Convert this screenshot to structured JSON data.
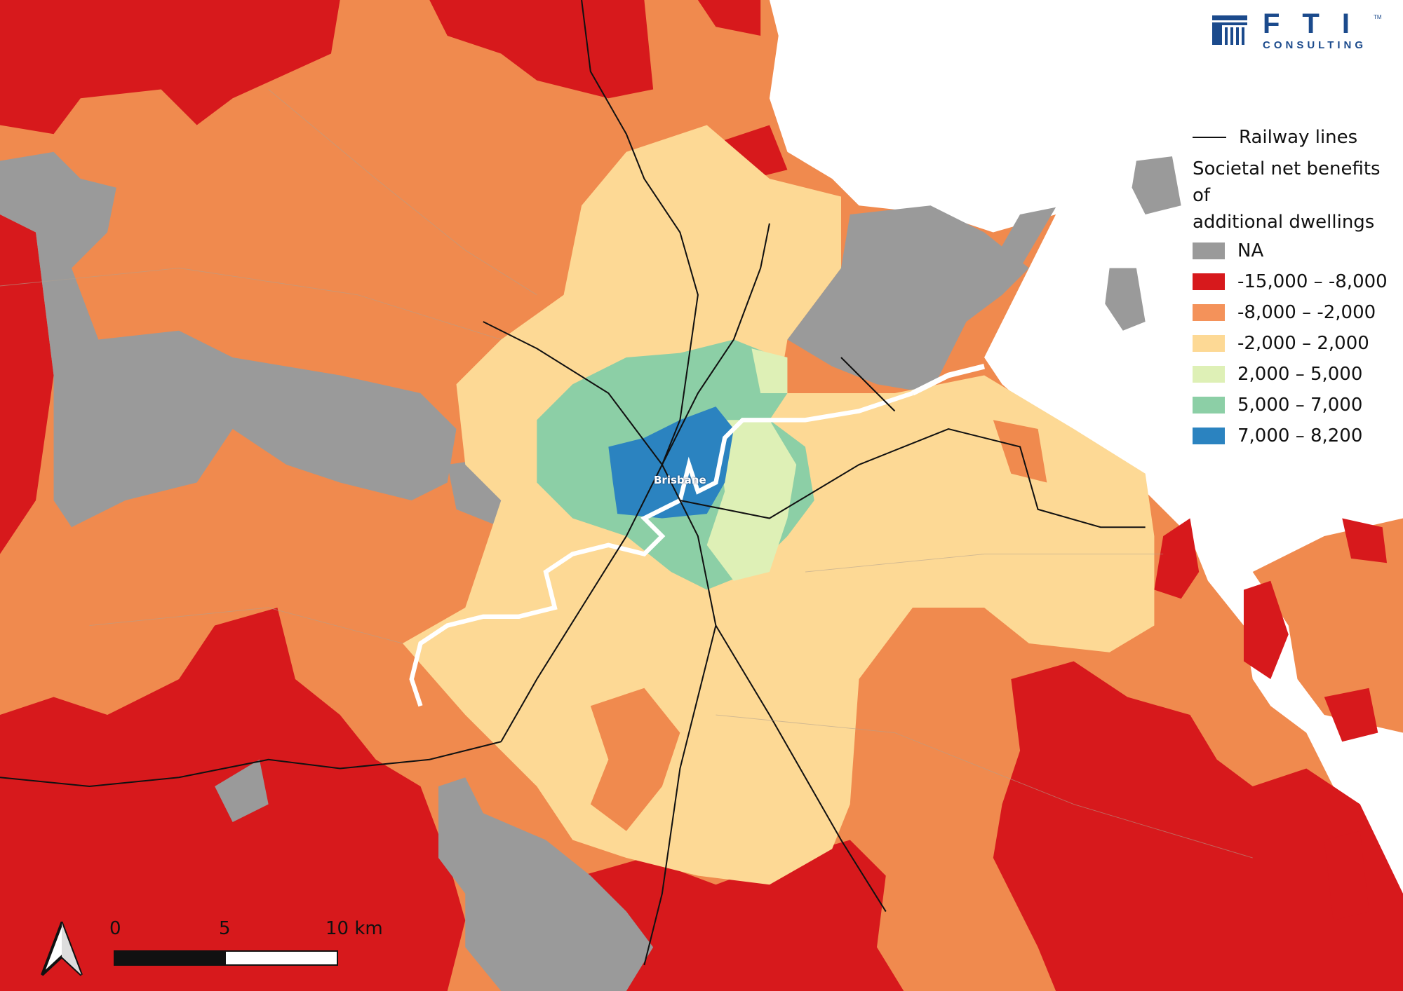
{
  "logo": {
    "brand": "FTI",
    "tm": "TM",
    "sub": "CONSULTING",
    "color": "#1b4a8c"
  },
  "map": {
    "city_label": "Brisbane",
    "colors": {
      "sea": "#ffffff",
      "river": "#ffffff",
      "railway": "#111111"
    }
  },
  "legend": {
    "railway_label": "Railway lines",
    "title_line1": "Societal net benefits of",
    "title_line2": "additional dwellings",
    "items": [
      {
        "label": "NA",
        "color": "#9a9a9a"
      },
      {
        "label": "-15,000 – -8,000",
        "color": "#d7191c"
      },
      {
        "label": "-8,000 – -2,000",
        "color": "#f4925a"
      },
      {
        "label": "-2,000 – 2,000",
        "color": "#fdd995"
      },
      {
        "label": "2,000 – 5,000",
        "color": "#def0b6"
      },
      {
        "label": "5,000 – 7,000",
        "color": "#8ccfa6"
      },
      {
        "label": "7,000 – 8,200",
        "color": "#2b83c0"
      }
    ]
  },
  "scale_bar": {
    "labels": [
      "0",
      "5",
      "10 km"
    ]
  },
  "north_arrow": {
    "icon": "north-arrow-icon"
  }
}
